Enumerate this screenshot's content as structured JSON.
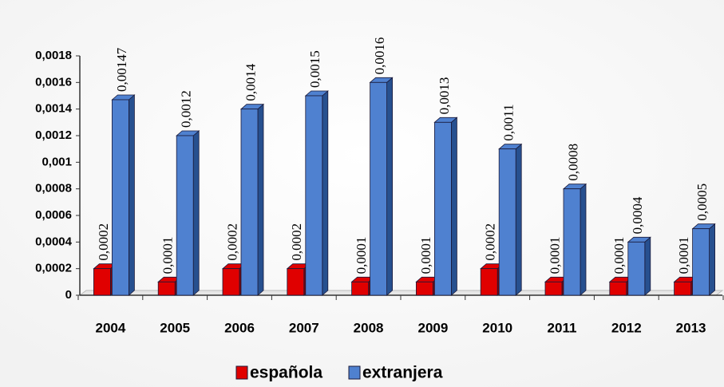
{
  "chart_data": {
    "type": "bar",
    "categories": [
      "2004",
      "2005",
      "2006",
      "2007",
      "2008",
      "2009",
      "2010",
      "2011",
      "2012",
      "2013"
    ],
    "series": [
      {
        "name": "española",
        "color": "#e00000",
        "values": [
          0.0002,
          0.0001,
          0.0002,
          0.0002,
          0.0001,
          0.0001,
          0.0002,
          0.0001,
          0.0001,
          0.0001
        ],
        "value_labels": [
          "0,0002",
          "0,0001",
          "0,0002",
          "0,0002",
          "0,0001",
          "0,0001",
          "0,0002",
          "0,0001",
          "0,0001",
          "0,0001"
        ]
      },
      {
        "name": "extranjera",
        "color": "#4f81d0",
        "values": [
          0.00147,
          0.0012,
          0.0014,
          0.0015,
          0.0016,
          0.0013,
          0.0011,
          0.0008,
          0.0004,
          0.0005
        ],
        "value_labels": [
          "0,00147",
          "0,0012",
          "0,0014",
          "0,0015",
          "0,0016",
          "0,0013",
          "0,0011",
          "0,0008",
          "0,0004",
          "0,0005"
        ]
      }
    ],
    "ylim": [
      0,
      0.0018
    ],
    "yticks": [
      0,
      {
        "value": 0.0002,
        "label": "0,0002"
      },
      {
        "value": 0.0004,
        "label": "0,0004"
      },
      {
        "value": 0.0006,
        "label": "0,0006"
      },
      {
        "value": 0.0008,
        "label": "0,0008"
      },
      {
        "value": 0.001,
        "label": "0,001"
      },
      {
        "value": 0.0012,
        "label": "0,0012"
      },
      {
        "value": 0.0014,
        "label": "0,0014"
      },
      {
        "value": 0.0016,
        "label": "0,0016"
      },
      {
        "value": 0.0018,
        "label": "0,0018"
      }
    ],
    "legend": "bottom"
  }
}
